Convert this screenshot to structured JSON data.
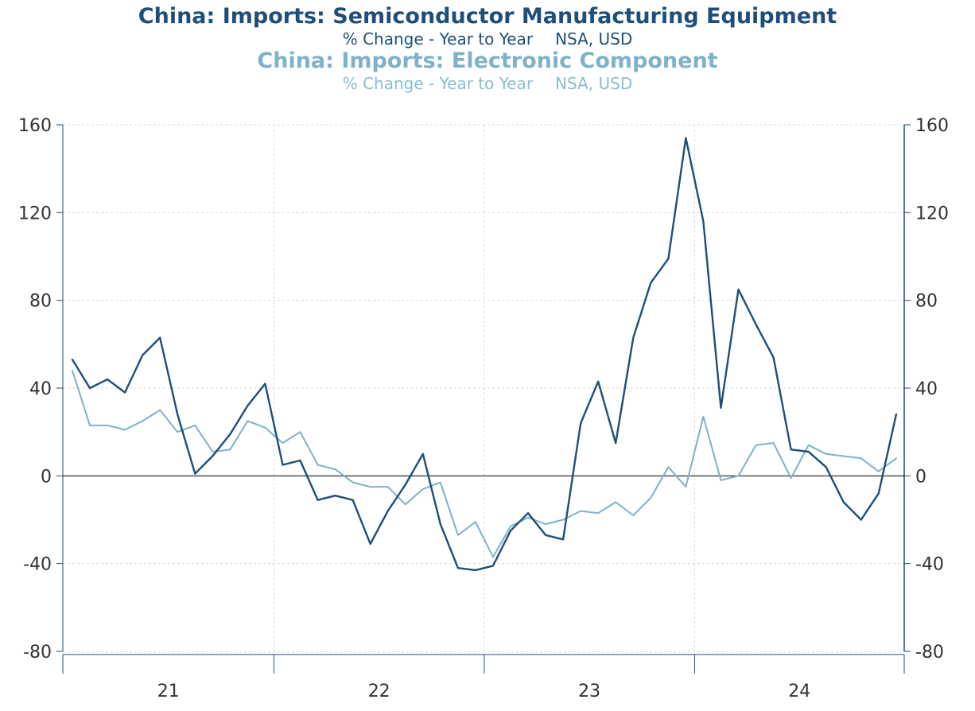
{
  "titles": {
    "series1_title": "China: Imports: Semiconductor Manufacturing Equipment",
    "series1_units": "% Change - Year to Year",
    "series1_source": "NSA, USD",
    "series2_title": "China: Imports: Electronic Component",
    "series2_units": "% Change - Year to Year",
    "series2_source": "NSA, USD"
  },
  "colors": {
    "series1": "#1f4e79",
    "series2": "#7fb2c8",
    "grid": "#d9d9d9",
    "axis": "#1f4e79",
    "zero_line": "#000000"
  },
  "chart_data": {
    "type": "line",
    "x_period": "monthly",
    "x_start": "2021-01",
    "x_tick_labels": [
      "21",
      "22",
      "23",
      "24"
    ],
    "ylim": [
      -80,
      160
    ],
    "yticks": [
      -80,
      -40,
      0,
      40,
      80,
      120,
      160
    ],
    "y_tick_labels": [
      "-80",
      "-40",
      "0",
      "40",
      "80",
      "120",
      "160"
    ],
    "grid": true,
    "series": [
      {
        "name": "China: Imports: Semiconductor Manufacturing Equipment",
        "axis": "left",
        "values": [
          53,
          40,
          44,
          38,
          55,
          63,
          28,
          1,
          9,
          19,
          32,
          42,
          5,
          7,
          -11,
          -9,
          -11,
          -31,
          -16,
          -4,
          10,
          -22,
          -42,
          -43,
          -41,
          -25,
          -17,
          -27,
          -29,
          24,
          43,
          15,
          63,
          88,
          99,
          154,
          116,
          31,
          85,
          69,
          54,
          12,
          11,
          4,
          -12,
          -20,
          -8,
          28
        ]
      },
      {
        "name": "China: Imports: Electronic Component",
        "axis": "right",
        "values": [
          48,
          23,
          23,
          21,
          25,
          30,
          20,
          23,
          11,
          12,
          25,
          22,
          15,
          20,
          5,
          3,
          -3,
          -5,
          -5,
          -13,
          -6,
          -3,
          -27,
          -21,
          -37,
          -23,
          -19,
          -22,
          -20,
          -16,
          -17,
          -12,
          -18,
          -10,
          4,
          -5,
          27,
          -2,
          0,
          14,
          15,
          -1,
          14,
          10,
          9,
          8,
          2,
          8
        ]
      }
    ]
  }
}
